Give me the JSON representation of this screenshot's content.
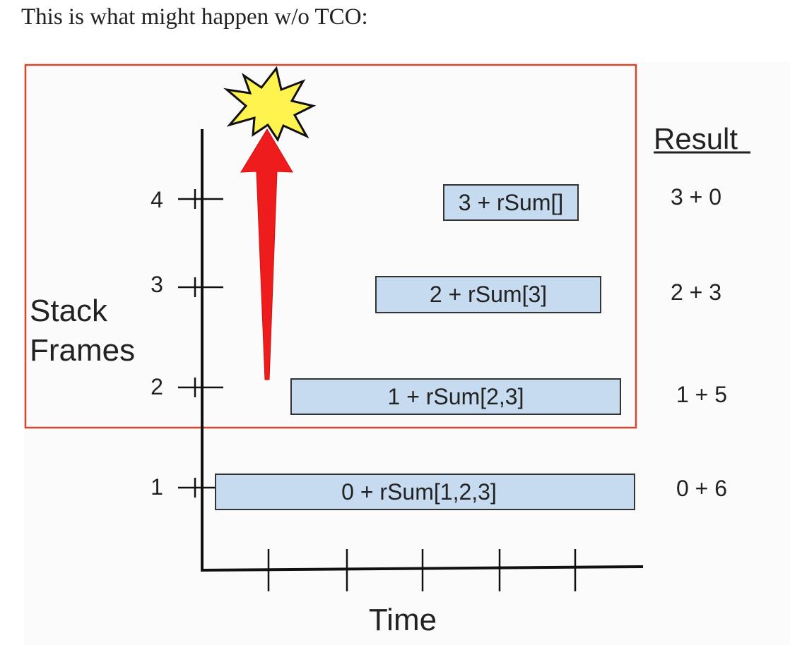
{
  "caption": "This is what might happen w/o TCO:",
  "y_axis_label_line1": "Stack",
  "y_axis_label_line2": "Frames",
  "x_axis_label": "Time",
  "result_header": "Result",
  "y_ticks": [
    "1",
    "2",
    "3",
    "4"
  ],
  "frames": [
    {
      "label": "0 + rSum[1,2,3]",
      "result": "0 + 6"
    },
    {
      "label": "1 + rSum[2,3]",
      "result": "1 + 5"
    },
    {
      "label": "2 + rSum[3]",
      "result": "2 + 3"
    },
    {
      "label": "3 + rSum[]",
      "result": "3 + 0"
    }
  ],
  "colors": {
    "highlight_border": "#d9442e",
    "frame_fill": "#c6dbef",
    "frame_border": "#333333",
    "arrow": "#ee1c1c",
    "burst_fill": "#fff44f",
    "axis": "#111111"
  },
  "icons": {
    "overflow": "explosion-burst-icon",
    "growth": "red-up-arrow-icon"
  }
}
